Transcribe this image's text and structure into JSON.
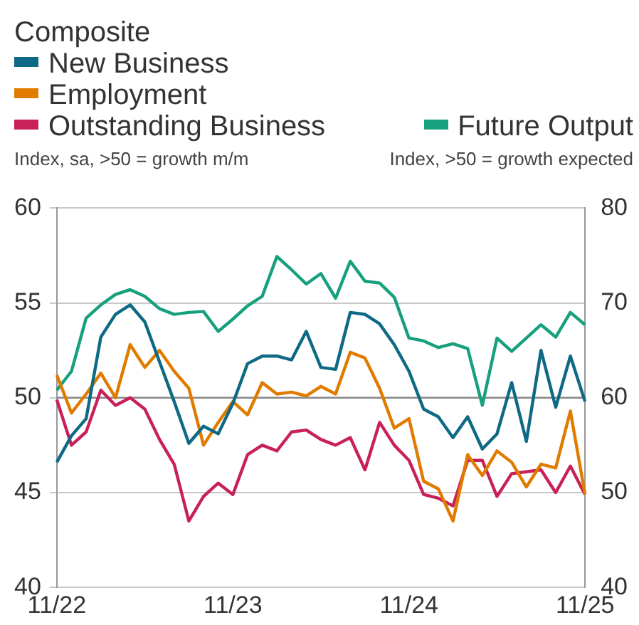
{
  "chart_data": {
    "type": "line",
    "title": "Composite",
    "ylabel": "Index, sa, >50 = growth m/m",
    "y2label": "Index, >50 = growth expected",
    "categories": [
      "11/22",
      null,
      null,
      null,
      null,
      null,
      null,
      null,
      null,
      null,
      null,
      null,
      "11/23",
      null,
      null,
      null,
      null,
      null,
      null,
      null,
      null,
      null,
      null,
      null,
      "11/24",
      null,
      null,
      null,
      null,
      null,
      null,
      null,
      null,
      null,
      null,
      null,
      "11/25"
    ],
    "series": [
      {
        "name": "New Business",
        "color": "#0e6a84",
        "values": [
          46.6,
          48.0,
          48.9,
          53.2,
          54.4,
          54.9,
          54.0,
          51.9,
          49.8,
          47.6,
          48.5,
          48.1,
          49.7,
          51.8,
          52.2,
          52.2,
          52.0,
          53.5,
          51.6,
          51.5,
          54.5,
          54.4,
          53.9,
          52.8,
          51.4,
          49.4,
          49.0,
          47.9,
          49.0,
          47.3,
          48.1,
          50.8,
          47.7,
          52.5,
          49.5,
          52.2,
          49.8
        ]
      },
      {
        "name": "Employment",
        "color": "#e07b00",
        "values": [
          51.2,
          49.2,
          50.2,
          51.3,
          50.0,
          52.8,
          51.6,
          52.5,
          51.4,
          50.5,
          47.5,
          48.7,
          49.8,
          49.1,
          50.8,
          50.2,
          50.3,
          50.1,
          50.6,
          50.2,
          52.4,
          52.1,
          50.5,
          48.4,
          48.9,
          45.6,
          45.2,
          43.5,
          47.0,
          45.9,
          47.2,
          46.6,
          45.3,
          46.5,
          46.3,
          49.3,
          44.9
        ]
      },
      {
        "name": "Outstanding Business",
        "color": "#c8215a",
        "values": [
          49.9,
          47.5,
          48.2,
          50.4,
          49.6,
          50.0,
          49.4,
          47.8,
          46.5,
          43.5,
          44.8,
          45.5,
          44.9,
          47.0,
          47.5,
          47.2,
          48.2,
          48.3,
          47.8,
          47.5,
          47.9,
          46.2,
          48.7,
          47.5,
          46.7,
          44.9,
          44.7,
          44.3,
          46.7,
          46.7,
          44.8,
          46.0,
          46.1,
          46.2,
          45.0,
          46.4,
          44.9
        ]
      },
      {
        "name": "Future Output",
        "color": "#16a07d",
        "axis": "y2",
        "values": [
          60.8,
          62.8,
          68.4,
          69.8,
          70.9,
          71.4,
          70.7,
          69.4,
          68.8,
          69.0,
          69.1,
          67.0,
          68.3,
          69.7,
          70.7,
          74.9,
          73.5,
          72.0,
          73.1,
          70.5,
          74.4,
          72.3,
          72.1,
          70.6,
          66.3,
          66.0,
          65.3,
          65.7,
          65.2,
          59.2,
          66.3,
          64.9,
          66.3,
          67.7,
          66.4,
          69.0,
          67.7
        ]
      }
    ],
    "ylim": [
      40,
      60
    ],
    "yticks": [
      40,
      45,
      50,
      55,
      60
    ],
    "y2lim": [
      40,
      80
    ],
    "y2ticks": [
      40,
      50,
      60,
      70,
      80
    ],
    "ref_lines": [
      {
        "axis": "y",
        "value": 50,
        "color": "#888888"
      }
    ],
    "grid": "y",
    "legend": "top left",
    "marker": "none",
    "line_style": "solid"
  }
}
